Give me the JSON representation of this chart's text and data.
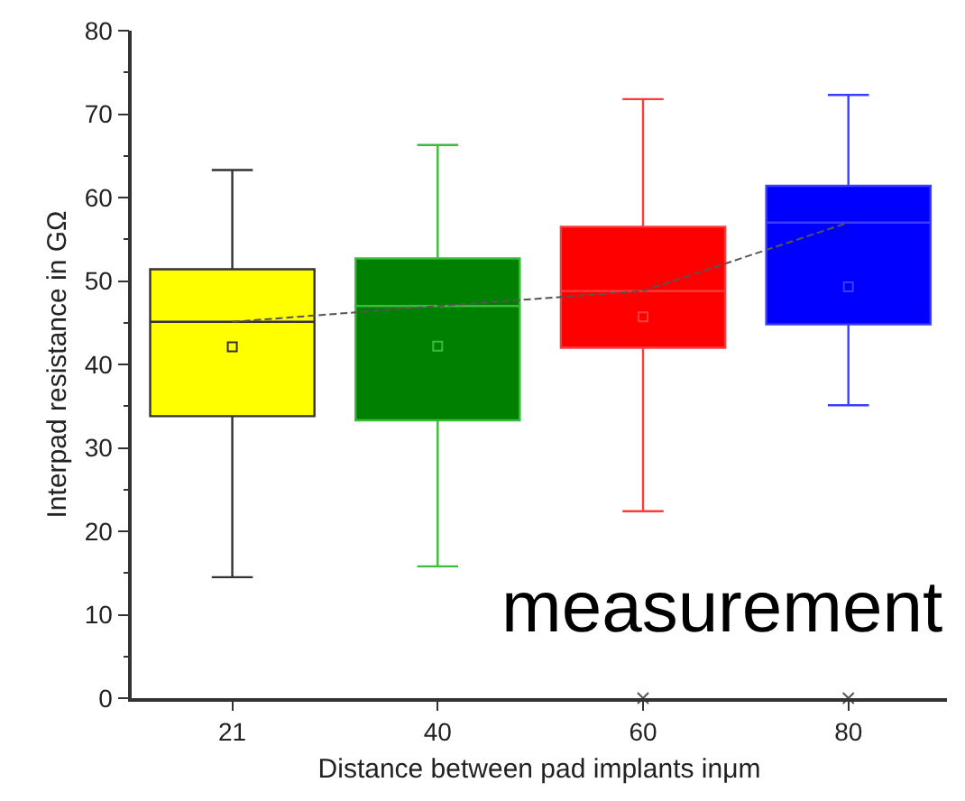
{
  "chart_data": {
    "type": "box",
    "xlabel": "Distance between pad implants inμm",
    "ylabel": "Interpad resistance in GΩ",
    "categories": [
      "21",
      "40",
      "60",
      "80"
    ],
    "boxes": [
      {
        "low": 14.5,
        "q1": 33.8,
        "median": 45.1,
        "q3": 51.4,
        "high": 63.3,
        "mean": 42.1
      },
      {
        "low": 15.8,
        "q1": 33.3,
        "median": 47.0,
        "q3": 52.7,
        "high": 66.3,
        "mean": 42.2
      },
      {
        "low": 22.4,
        "q1": 42.0,
        "median": 48.8,
        "q3": 56.5,
        "high": 71.8,
        "mean": 45.7,
        "outliers": [
          0
        ]
      },
      {
        "low": 35.1,
        "q1": 44.8,
        "median": 57.0,
        "q3": 61.4,
        "high": 72.3,
        "mean": 49.3,
        "outliers": [
          0
        ]
      }
    ],
    "colors": [
      "#ffff00",
      "#008000",
      "#ff0000",
      "#0000ff"
    ],
    "series": [
      {
        "type": "line",
        "color": "#555555",
        "values": [
          45.1,
          47.0,
          48.8,
          57.0
        ]
      }
    ],
    "line_style": "dashed",
    "ylim": [
      0,
      80
    ],
    "yticks": [
      0,
      10,
      20,
      30,
      40,
      50,
      60,
      70,
      80
    ],
    "annotations": [
      "measurement"
    ]
  }
}
